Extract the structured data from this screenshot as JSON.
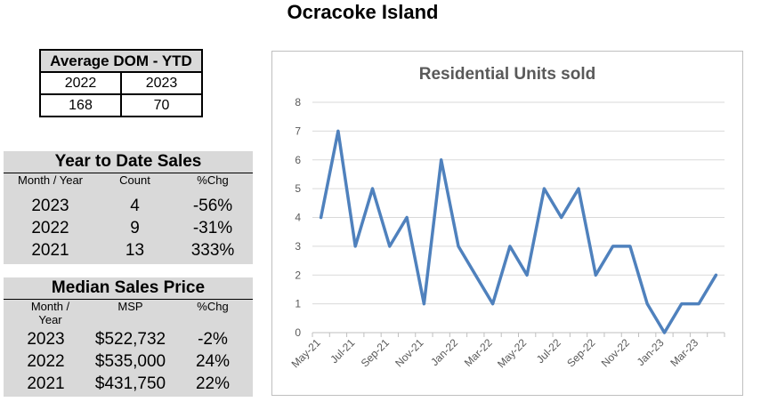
{
  "page": {
    "title": "Ocracoke Island"
  },
  "dom_table": {
    "header": "Average DOM - YTD",
    "years": [
      "2022",
      "2023"
    ],
    "values": [
      "168",
      "70"
    ]
  },
  "ytd_sales": {
    "title": "Year to Date Sales",
    "headers": [
      "Month / Year",
      "Count",
      "%Chg"
    ],
    "rows": [
      {
        "year": "2023",
        "count": "4",
        "chg": "-56%"
      },
      {
        "year": "2022",
        "count": "9",
        "chg": "-31%"
      },
      {
        "year": "2021",
        "count": "13",
        "chg": "333%"
      }
    ]
  },
  "median_price": {
    "title": "Median Sales Price",
    "headers": [
      "Month /",
      "Year",
      "MSP",
      "%Chg"
    ],
    "rows": [
      {
        "year": "2023",
        "msp": "$522,732",
        "chg": "-2%"
      },
      {
        "year": "2022",
        "msp": "$535,000",
        "chg": "24%"
      },
      {
        "year": "2021",
        "msp": "$431,750",
        "chg": "22%"
      }
    ]
  },
  "chart_data": {
    "type": "line",
    "title": "Residential Units sold",
    "xlabel": "",
    "ylabel": "",
    "ylim": [
      0,
      8
    ],
    "yticks": [
      0,
      1,
      2,
      3,
      4,
      5,
      6,
      7,
      8
    ],
    "grid": true,
    "line_color": "#4f81bd",
    "x": [
      "May-21",
      "Jun-21",
      "Jul-21",
      "Aug-21",
      "Sep-21",
      "Oct-21",
      "Nov-21",
      "Dec-21",
      "Jan-22",
      "Feb-22",
      "Mar-22",
      "Apr-22",
      "May-22",
      "Jun-22",
      "Jul-22",
      "Aug-22",
      "Sep-22",
      "Oct-22",
      "Nov-22",
      "Dec-22",
      "Jan-23",
      "Feb-23",
      "Mar-23",
      "Apr-23"
    ],
    "x_tick_labels": [
      "May-21",
      "Jul-21",
      "Sep-21",
      "Nov-21",
      "Jan-22",
      "Mar-22",
      "May-22",
      "Jul-22",
      "Sep-22",
      "Nov-22",
      "Jan-23",
      "Mar-23"
    ],
    "series": [
      {
        "values": [
          4,
          7,
          3,
          5,
          3,
          4,
          1,
          6,
          3,
          2,
          1,
          3,
          2,
          5,
          4,
          5,
          2,
          3,
          3,
          1,
          0,
          1,
          1,
          2
        ]
      }
    ]
  }
}
